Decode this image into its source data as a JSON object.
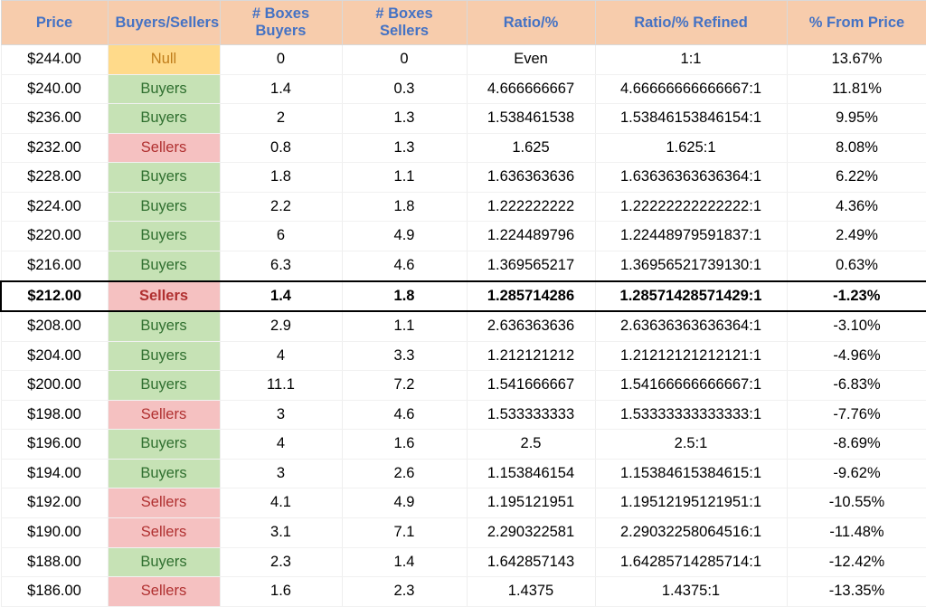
{
  "columns": [
    "Price",
    "Buyers/Sellers",
    "# Boxes Buyers",
    "# Boxes Sellers",
    "Ratio/%",
    "Ratio/% Refined",
    "% From Price"
  ],
  "bs_classes": {
    "Buyers": "bs-buyers",
    "Sellers": "bs-sellers",
    "Null": "bs-null"
  },
  "highlight_price": "$212.00",
  "rows": [
    {
      "price": "$244.00",
      "bs": "Null",
      "bbuy": "0",
      "bsell": "0",
      "ratio": "Even",
      "refined": "1:1",
      "pct": "13.67%"
    },
    {
      "price": "$240.00",
      "bs": "Buyers",
      "bbuy": "1.4",
      "bsell": "0.3",
      "ratio": "4.666666667",
      "refined": "4.66666666666667:1",
      "pct": "11.81%"
    },
    {
      "price": "$236.00",
      "bs": "Buyers",
      "bbuy": "2",
      "bsell": "1.3",
      "ratio": "1.538461538",
      "refined": "1.53846153846154:1",
      "pct": "9.95%"
    },
    {
      "price": "$232.00",
      "bs": "Sellers",
      "bbuy": "0.8",
      "bsell": "1.3",
      "ratio": "1.625",
      "refined": "1.625:1",
      "pct": "8.08%"
    },
    {
      "price": "$228.00",
      "bs": "Buyers",
      "bbuy": "1.8",
      "bsell": "1.1",
      "ratio": "1.636363636",
      "refined": "1.63636363636364:1",
      "pct": "6.22%"
    },
    {
      "price": "$224.00",
      "bs": "Buyers",
      "bbuy": "2.2",
      "bsell": "1.8",
      "ratio": "1.222222222",
      "refined": "1.22222222222222:1",
      "pct": "4.36%"
    },
    {
      "price": "$220.00",
      "bs": "Buyers",
      "bbuy": "6",
      "bsell": "4.9",
      "ratio": "1.224489796",
      "refined": "1.22448979591837:1",
      "pct": "2.49%"
    },
    {
      "price": "$216.00",
      "bs": "Buyers",
      "bbuy": "6.3",
      "bsell": "4.6",
      "ratio": "1.369565217",
      "refined": "1.36956521739130:1",
      "pct": "0.63%"
    },
    {
      "price": "$212.00",
      "bs": "Sellers",
      "bbuy": "1.4",
      "bsell": "1.8",
      "ratio": "1.285714286",
      "refined": "1.28571428571429:1",
      "pct": "-1.23%"
    },
    {
      "price": "$208.00",
      "bs": "Buyers",
      "bbuy": "2.9",
      "bsell": "1.1",
      "ratio": "2.636363636",
      "refined": "2.63636363636364:1",
      "pct": "-3.10%"
    },
    {
      "price": "$204.00",
      "bs": "Buyers",
      "bbuy": "4",
      "bsell": "3.3",
      "ratio": "1.212121212",
      "refined": "1.21212121212121:1",
      "pct": "-4.96%"
    },
    {
      "price": "$200.00",
      "bs": "Buyers",
      "bbuy": "11.1",
      "bsell": "7.2",
      "ratio": "1.541666667",
      "refined": "1.54166666666667:1",
      "pct": "-6.83%"
    },
    {
      "price": "$198.00",
      "bs": "Sellers",
      "bbuy": "3",
      "bsell": "4.6",
      "ratio": "1.533333333",
      "refined": "1.53333333333333:1",
      "pct": "-7.76%"
    },
    {
      "price": "$196.00",
      "bs": "Buyers",
      "bbuy": "4",
      "bsell": "1.6",
      "ratio": "2.5",
      "refined": "2.5:1",
      "pct": "-8.69%"
    },
    {
      "price": "$194.00",
      "bs": "Buyers",
      "bbuy": "3",
      "bsell": "2.6",
      "ratio": "1.153846154",
      "refined": "1.15384615384615:1",
      "pct": "-9.62%"
    },
    {
      "price": "$192.00",
      "bs": "Sellers",
      "bbuy": "4.1",
      "bsell": "4.9",
      "ratio": "1.195121951",
      "refined": "1.19512195121951:1",
      "pct": "-10.55%"
    },
    {
      "price": "$190.00",
      "bs": "Sellers",
      "bbuy": "3.1",
      "bsell": "7.1",
      "ratio": "2.290322581",
      "refined": "2.29032258064516:1",
      "pct": "-11.48%"
    },
    {
      "price": "$188.00",
      "bs": "Buyers",
      "bbuy": "2.3",
      "bsell": "1.4",
      "ratio": "1.642857143",
      "refined": "1.64285714285714:1",
      "pct": "-12.42%"
    },
    {
      "price": "$186.00",
      "bs": "Sellers",
      "bbuy": "1.6",
      "bsell": "2.3",
      "ratio": "1.4375",
      "refined": "1.4375:1",
      "pct": "-13.35%"
    }
  ]
}
